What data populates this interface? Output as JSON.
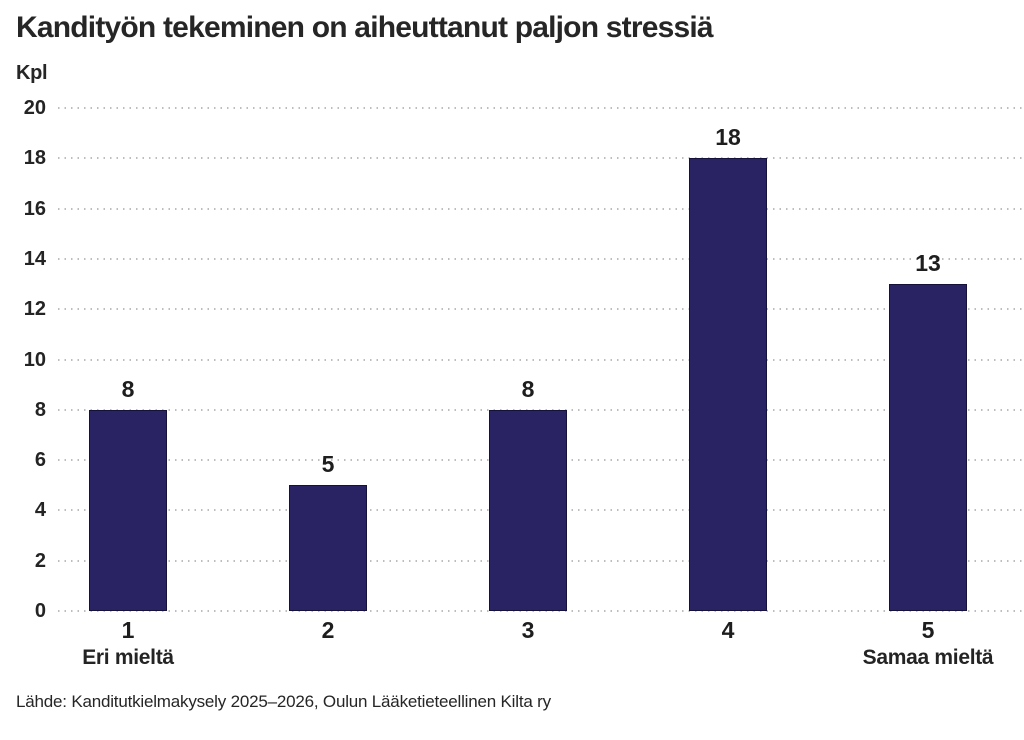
{
  "chart_data": {
    "type": "bar",
    "title": "Kandityön tekeminen on aiheuttanut paljon stressiä",
    "ylabel": "Kpl",
    "xlabel": "",
    "categories": [
      "1",
      "2",
      "3",
      "4",
      "5"
    ],
    "values": [
      8,
      5,
      8,
      18,
      13
    ],
    "data_labels": [
      "8",
      "5",
      "8",
      "18",
      "13"
    ],
    "sublabels": [
      "Eri mieltä",
      "",
      "",
      "",
      "Samaa mieltä"
    ],
    "ylim": [
      0,
      20
    ],
    "yticks": [
      0,
      2,
      4,
      6,
      8,
      10,
      12,
      14,
      16,
      18,
      20
    ],
    "grid": "horizontal-dotted",
    "legend": "none",
    "bar_color": "#2a2363",
    "bar_border_color": "#14113a",
    "gridline_color": "#bdbdbd",
    "text_color": "#262626"
  },
  "source": "Lähde: Kanditutkielmakysely 2025–2026, Oulun Lääketieteellinen Kilta ry"
}
